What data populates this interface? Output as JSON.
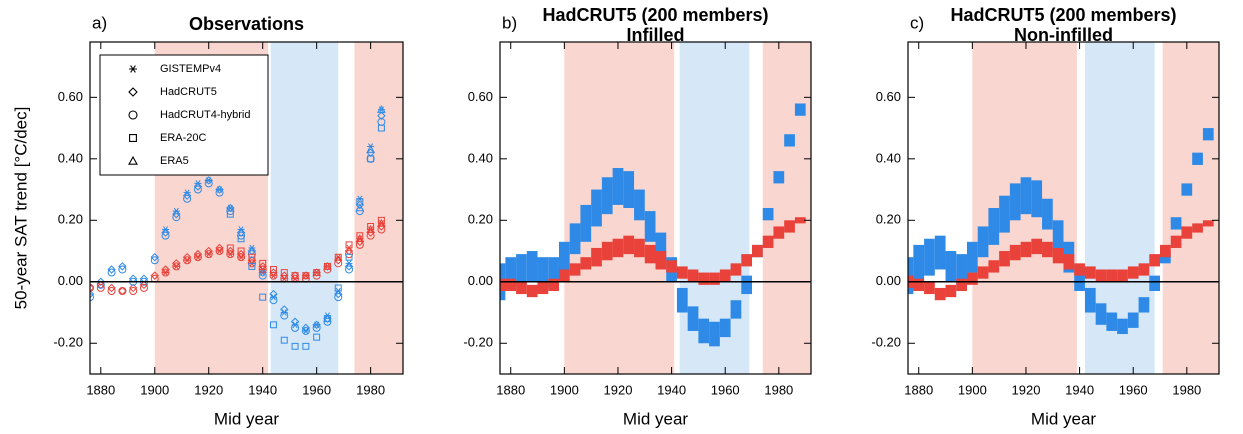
{
  "chart_data": [
    {
      "type": "scatter",
      "label": "a)",
      "title": [
        "Observations"
      ],
      "xlabel": "Mid year",
      "ylabel": "50-year SAT trend [°C/dec]",
      "xlim": [
        1876,
        1992
      ],
      "ylim": [
        -0.3,
        0.78
      ],
      "xticks": [
        1880,
        1900,
        1920,
        1940,
        1960,
        1980
      ],
      "yticks": [
        {
          "value": -0.2,
          "label": "-0.20"
        },
        {
          "value": 0,
          "label": "0.00"
        },
        {
          "value": 0.2,
          "label": "0.20"
        },
        {
          "value": 0.4,
          "label": "0.40"
        },
        {
          "value": 0.6,
          "label": "0.60"
        }
      ],
      "hline": 0,
      "legend": "upper left",
      "shading": [
        {
          "range": [
            1900,
            1942
          ],
          "color": "#f9d6d0"
        },
        {
          "range": [
            1943,
            1968
          ],
          "color": "#d6e8f8"
        },
        {
          "range": [
            1974,
            1992
          ],
          "color": "#f9d6d0"
        }
      ],
      "x": [
        1876,
        1880,
        1884,
        1888,
        1892,
        1896,
        1900,
        1904,
        1908,
        1912,
        1916,
        1920,
        1924,
        1928,
        1932,
        1936,
        1940,
        1944,
        1948,
        1952,
        1956,
        1960,
        1964,
        1968,
        1972,
        1976,
        1980,
        1984
      ],
      "series": [
        {
          "name": "GISTEMPv4",
          "marker": "asterisk",
          "groups": [
            {
              "color": "#2e8ae6",
              "values": [
                null,
                null,
                null,
                null,
                null,
                null,
                null,
                0.17,
                0.23,
                0.29,
                0.32,
                0.33,
                0.3,
                0.24,
                0.17,
                0.11,
                0.03,
                -0.05,
                -0.1,
                -0.14,
                -0.16,
                -0.14,
                -0.11,
                -0.03,
                0.06,
                0.27,
                0.44,
                0.56
              ]
            },
            {
              "color": "#e8423a",
              "values": [
                null,
                null,
                null,
                null,
                null,
                null,
                null,
                0.03,
                0.05,
                0.07,
                0.08,
                0.09,
                0.1,
                0.09,
                0.08,
                0.06,
                0.04,
                0.02,
                0.01,
                0.01,
                0.02,
                0.03,
                0.05,
                0.08,
                0.11,
                0.14,
                0.17,
                0.19
              ]
            }
          ]
        },
        {
          "name": "HadCRUT5",
          "marker": "diamond",
          "groups": [
            {
              "color": "#2e8ae6",
              "values": [
                -0.04,
                0.0,
                0.04,
                0.05,
                0.01,
                0.01,
                0.08,
                0.16,
                0.22,
                0.28,
                0.31,
                0.33,
                0.3,
                0.24,
                0.16,
                0.1,
                0.03,
                -0.04,
                -0.09,
                -0.13,
                -0.15,
                -0.14,
                -0.12,
                -0.04,
                0.05,
                0.25,
                0.42,
                0.54
              ]
            },
            {
              "color": "#e8423a",
              "values": [
                -0.02,
                -0.01,
                -0.02,
                -0.03,
                -0.02,
                -0.01,
                0.02,
                0.04,
                0.06,
                0.08,
                0.09,
                0.1,
                0.11,
                0.1,
                0.09,
                0.07,
                0.05,
                0.03,
                0.02,
                0.02,
                0.02,
                0.03,
                0.05,
                0.07,
                0.1,
                0.13,
                0.16,
                0.18
              ]
            }
          ]
        },
        {
          "name": "HadCRUT4-hybrid",
          "marker": "circle",
          "groups": [
            {
              "color": "#2e8ae6",
              "values": [
                -0.05,
                -0.01,
                0.03,
                0.04,
                0.0,
                0.0,
                0.07,
                0.15,
                0.21,
                0.27,
                0.3,
                0.32,
                0.29,
                0.23,
                0.15,
                0.09,
                0.02,
                -0.06,
                -0.11,
                -0.15,
                -0.16,
                -0.15,
                -0.13,
                -0.05,
                0.04,
                0.23,
                0.4,
                0.52
              ]
            },
            {
              "color": "#e8423a",
              "values": [
                -0.02,
                -0.02,
                -0.03,
                -0.03,
                -0.03,
                -0.02,
                0.01,
                0.03,
                0.05,
                0.07,
                0.08,
                0.09,
                0.1,
                0.09,
                0.08,
                0.06,
                0.04,
                0.02,
                0.01,
                0.01,
                0.01,
                0.02,
                0.04,
                0.06,
                0.09,
                0.12,
                0.15,
                0.17
              ]
            }
          ]
        },
        {
          "name": "ERA-20C",
          "marker": "square",
          "groups": [
            {
              "color": "#2e8ae6",
              "values": [
                null,
                null,
                null,
                null,
                null,
                null,
                null,
                null,
                null,
                null,
                null,
                null,
                null,
                0.22,
                0.14,
                0.05,
                -0.05,
                -0.14,
                -0.19,
                -0.21,
                -0.21,
                -0.18,
                -0.12,
                -0.02,
                0.08,
                0.26,
                0.4,
                0.5
              ]
            },
            {
              "color": "#e8423a",
              "values": [
                null,
                null,
                null,
                null,
                null,
                null,
                null,
                null,
                null,
                null,
                null,
                null,
                null,
                0.11,
                0.1,
                0.08,
                0.06,
                0.04,
                0.03,
                0.02,
                0.02,
                0.03,
                0.05,
                0.08,
                0.12,
                0.15,
                0.18,
                0.2
              ]
            }
          ]
        },
        {
          "name": "ERA5",
          "marker": "triangle",
          "groups": [
            {
              "color": "#2e8ae6",
              "values": [
                null,
                null,
                null,
                null,
                null,
                null,
                null,
                null,
                null,
                null,
                null,
                null,
                null,
                null,
                null,
                null,
                null,
                null,
                null,
                null,
                null,
                null,
                null,
                null,
                null,
                0.24,
                0.43,
                0.56
              ]
            },
            {
              "color": "#e8423a",
              "values": [
                null,
                null,
                null,
                null,
                null,
                null,
                null,
                null,
                null,
                null,
                null,
                null,
                null,
                null,
                null,
                null,
                null,
                null,
                null,
                null,
                null,
                null,
                null,
                null,
                null,
                0.14,
                0.17,
                0.19
              ]
            }
          ]
        }
      ]
    },
    {
      "type": "band",
      "label": "b)",
      "title": [
        "HadCRUT5 (200 members)",
        "Infilled"
      ],
      "xlabel": "Mid year",
      "xlim": [
        1876,
        1992
      ],
      "ylim": [
        -0.3,
        0.78
      ],
      "xticks": [
        1880,
        1900,
        1920,
        1940,
        1960,
        1980
      ],
      "yticks": [
        {
          "value": -0.2,
          "label": "-0.20"
        },
        {
          "value": 0,
          "label": "0.00"
        },
        {
          "value": 0.2,
          "label": "0.20"
        },
        {
          "value": 0.4,
          "label": "0.40"
        },
        {
          "value": 0.6,
          "label": "0.60"
        }
      ],
      "hline": 0,
      "shading": [
        {
          "range": [
            1900,
            1941
          ],
          "color": "#f9d6d0"
        },
        {
          "range": [
            1943,
            1969
          ],
          "color": "#d6e8f8"
        },
        {
          "range": [
            1974,
            1992
          ],
          "color": "#f9d6d0"
        }
      ],
      "x": [
        1876,
        1880,
        1884,
        1888,
        1892,
        1896,
        1900,
        1904,
        1908,
        1912,
        1916,
        1920,
        1924,
        1928,
        1932,
        1936,
        1940,
        1944,
        1948,
        1952,
        1956,
        1960,
        1964,
        1968,
        1972,
        1976,
        1980,
        1984,
        1988
      ],
      "bands": [
        {
          "color": "#2e8ae6",
          "lower": [
            -0.06,
            -0.02,
            -0.01,
            0.0,
            -0.02,
            -0.02,
            0.03,
            0.09,
            0.13,
            0.18,
            0.22,
            0.25,
            0.24,
            0.2,
            0.13,
            0.06,
            0.0,
            -0.1,
            -0.16,
            -0.2,
            -0.21,
            -0.18,
            -0.12,
            -0.04,
            0.08,
            0.2,
            0.32,
            0.44,
            0.54
          ],
          "upper": [
            0.06,
            0.08,
            0.09,
            0.1,
            0.08,
            0.08,
            0.13,
            0.19,
            0.25,
            0.3,
            0.34,
            0.37,
            0.36,
            0.3,
            0.23,
            0.16,
            0.08,
            -0.02,
            -0.08,
            -0.12,
            -0.13,
            -0.12,
            -0.06,
            0.02,
            0.12,
            0.24,
            0.36,
            0.48,
            0.58
          ]
        },
        {
          "color": "#e8423a",
          "lower": [
            -0.03,
            -0.03,
            -0.04,
            -0.05,
            -0.04,
            -0.03,
            0.0,
            0.02,
            0.04,
            0.05,
            0.07,
            0.08,
            0.09,
            0.08,
            0.06,
            0.04,
            0.03,
            0.01,
            0.0,
            -0.01,
            -0.01,
            0.0,
            0.02,
            0.05,
            0.08,
            0.11,
            0.14,
            0.16,
            0.19
          ],
          "upper": [
            0.01,
            0.01,
            0.0,
            -0.01,
            0.0,
            0.01,
            0.04,
            0.06,
            0.08,
            0.11,
            0.13,
            0.14,
            0.15,
            0.14,
            0.12,
            0.1,
            0.07,
            0.05,
            0.04,
            0.03,
            0.03,
            0.04,
            0.06,
            0.09,
            0.12,
            0.15,
            0.18,
            0.2,
            0.21
          ]
        }
      ]
    },
    {
      "type": "band",
      "label": "c)",
      "title": [
        "HadCRUT5 (200 members)",
        "Non-infilled"
      ],
      "xlabel": "Mid year",
      "xlim": [
        1876,
        1992
      ],
      "ylim": [
        -0.3,
        0.78
      ],
      "xticks": [
        1880,
        1900,
        1920,
        1940,
        1960,
        1980
      ],
      "yticks": [
        {
          "value": -0.2,
          "label": "-0.20"
        },
        {
          "value": 0,
          "label": "0.00"
        },
        {
          "value": 0.2,
          "label": "0.20"
        },
        {
          "value": 0.4,
          "label": "0.40"
        },
        {
          "value": 0.6,
          "label": "0.60"
        }
      ],
      "hline": 0,
      "shading": [
        {
          "range": [
            1900,
            1939
          ],
          "color": "#f9d6d0"
        },
        {
          "range": [
            1942,
            1968
          ],
          "color": "#d6e8f8"
        },
        {
          "range": [
            1971,
            1992
          ],
          "color": "#f9d6d0"
        }
      ],
      "x": [
        1876,
        1880,
        1884,
        1888,
        1892,
        1896,
        1900,
        1904,
        1908,
        1912,
        1916,
        1920,
        1924,
        1928,
        1932,
        1936,
        1940,
        1944,
        1948,
        1952,
        1956,
        1960,
        1964,
        1968,
        1972,
        1976,
        1980,
        1984,
        1988
      ],
      "bands": [
        {
          "color": "#2e8ae6",
          "lower": [
            -0.04,
            0.0,
            0.02,
            0.04,
            0.0,
            -0.01,
            0.03,
            0.08,
            0.12,
            0.16,
            0.2,
            0.22,
            0.21,
            0.17,
            0.1,
            0.03,
            -0.03,
            -0.1,
            -0.14,
            -0.16,
            -0.17,
            -0.15,
            -0.1,
            -0.03,
            0.06,
            0.17,
            0.28,
            0.38,
            0.46
          ],
          "upper": [
            0.08,
            0.12,
            0.14,
            0.15,
            0.1,
            0.09,
            0.13,
            0.18,
            0.24,
            0.28,
            0.32,
            0.34,
            0.33,
            0.27,
            0.2,
            0.13,
            0.05,
            -0.02,
            -0.07,
            -0.1,
            -0.12,
            -0.1,
            -0.05,
            0.02,
            0.1,
            0.21,
            0.32,
            0.42,
            0.5
          ]
        },
        {
          "color": "#e8423a",
          "lower": [
            -0.02,
            -0.03,
            -0.04,
            -0.06,
            -0.05,
            -0.03,
            -0.01,
            0.01,
            0.03,
            0.05,
            0.07,
            0.08,
            0.09,
            0.08,
            0.06,
            0.04,
            0.02,
            0.01,
            0.0,
            0.0,
            0.0,
            0.01,
            0.02,
            0.05,
            0.08,
            0.11,
            0.14,
            0.16,
            0.18
          ],
          "upper": [
            0.02,
            0.01,
            0.0,
            -0.02,
            -0.01,
            0.01,
            0.03,
            0.05,
            0.07,
            0.1,
            0.12,
            0.13,
            0.14,
            0.13,
            0.11,
            0.09,
            0.06,
            0.05,
            0.04,
            0.04,
            0.04,
            0.05,
            0.06,
            0.09,
            0.12,
            0.15,
            0.18,
            0.19,
            0.2
          ]
        }
      ]
    }
  ]
}
